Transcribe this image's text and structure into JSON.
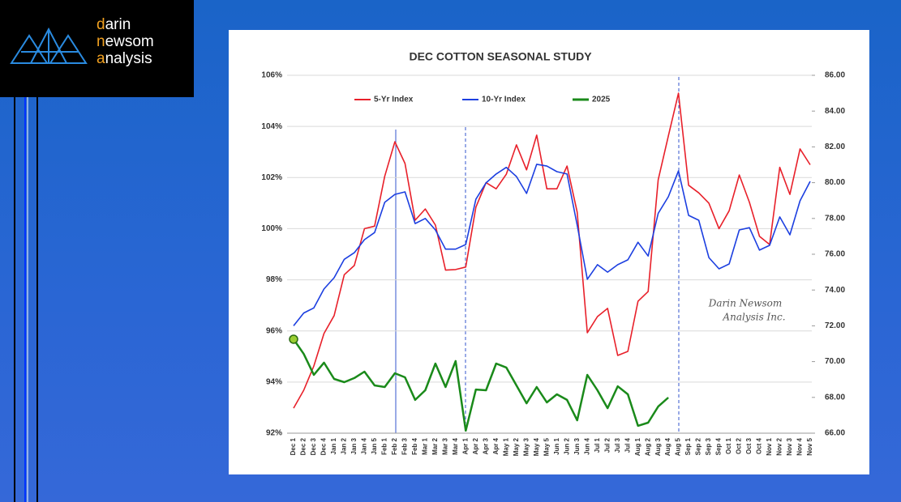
{
  "brand": {
    "lines": [
      "darin",
      "newsom",
      "analysis"
    ]
  },
  "chart_data": {
    "type": "line",
    "title": "DEC COTTON SEASONAL STUDY",
    "watermark": [
      "Darin Newsom",
      "Analysis Inc."
    ],
    "categories": [
      "Dec 1",
      "Dec 2",
      "Dec 3",
      "Dec 4",
      "Jan 1",
      "Jan 2",
      "Jan 3",
      "Jan 4",
      "Jan 5",
      "Feb 1",
      "Feb 2",
      "Feb 3",
      "Feb 4",
      "Mar 1",
      "Mar 2",
      "Mar 3",
      "Mar 4",
      "Apr 1",
      "Apr 2",
      "Apr 3",
      "Apr 4",
      "May 1",
      "May 2",
      "May 3",
      "May 4",
      "May 5",
      "Jun 1",
      "Jun 2",
      "Jun 3",
      "Jun 4",
      "Jul 1",
      "Jul 2",
      "Jul 3",
      "Jul 4",
      "Aug 1",
      "Aug 2",
      "Aug 3",
      "Aug 4",
      "Aug 5",
      "Sep 1",
      "Sep 2",
      "Sep 3",
      "Sep 4",
      "Oct 1",
      "Oct 2",
      "Oct 3",
      "Oct 4",
      "Nov 1",
      "Nov 2",
      "Nov 3",
      "Nov 4",
      "Nov 5"
    ],
    "series": [
      {
        "name": "5-Yr Index",
        "color": "#e8202a",
        "values": [
          92.98,
          93.68,
          94.63,
          95.9,
          96.6,
          98.2,
          98.56,
          100.0,
          100.1,
          102.05,
          103.4,
          102.55,
          100.33,
          100.77,
          100.14,
          98.38,
          98.4,
          98.5,
          100.84,
          101.8,
          101.56,
          102.13,
          103.28,
          102.3,
          103.66,
          101.56,
          101.56,
          102.45,
          100.65,
          95.93,
          96.56,
          96.88,
          95.04,
          95.2,
          97.16,
          97.54,
          101.91,
          103.62,
          105.3,
          101.7,
          101.4,
          101.0,
          100.0,
          100.7,
          102.1,
          101.03,
          99.7,
          99.38,
          102.4,
          101.34,
          103.12,
          102.5
        ]
      },
      {
        "name": "10-Yr Index",
        "color": "#1c3fe0",
        "values": [
          96.2,
          96.7,
          96.9,
          97.64,
          98.08,
          98.8,
          99.06,
          99.57,
          99.85,
          101.03,
          101.34,
          101.44,
          100.2,
          100.4,
          99.95,
          99.2,
          99.2,
          99.38,
          101.15,
          101.79,
          102.14,
          102.4,
          102.04,
          101.38,
          102.52,
          102.45,
          102.23,
          102.14,
          100.14,
          98.02,
          98.59,
          98.3,
          98.59,
          98.78,
          99.47,
          98.93,
          100.6,
          101.25,
          102.26,
          100.52,
          100.33,
          98.87,
          98.43,
          98.62,
          99.95,
          100.04,
          99.16,
          99.35,
          100.46,
          99.76,
          101.09,
          101.85
        ]
      },
      {
        "name": "2025",
        "color": "#1a8a1a",
        "axis": "y2",
        "values": [
          71.25,
          70.43,
          69.26,
          69.94,
          69.03,
          68.85,
          69.08,
          69.44,
          68.67,
          68.58,
          69.35,
          69.12,
          67.86,
          68.4,
          69.89,
          68.58,
          70.03,
          66.14,
          68.44,
          68.4,
          69.89,
          69.67,
          68.67,
          67.67,
          68.58,
          67.72,
          68.17,
          67.86,
          66.72,
          69.26,
          68.4,
          67.4,
          68.62,
          68.17,
          66.41,
          66.59,
          67.49,
          67.99,
          null,
          null,
          null,
          null,
          null,
          null,
          null,
          null,
          null,
          null,
          null,
          null,
          null,
          null
        ]
      }
    ],
    "ylim": [
      92,
      106
    ],
    "yticks": [
      {
        "value": 92,
        "label": "92%"
      },
      {
        "value": 94,
        "label": "94%"
      },
      {
        "value": 96,
        "label": "96%"
      },
      {
        "value": 98,
        "label": "98%"
      },
      {
        "value": 100,
        "label": "100%"
      },
      {
        "value": 102,
        "label": "102%"
      },
      {
        "value": 104,
        "label": "104%"
      },
      {
        "value": 106,
        "label": "106%"
      }
    ],
    "y2lim": [
      66,
      86
    ],
    "y2ticks": [
      {
        "value": 66,
        "label": "66.00"
      },
      {
        "value": 68,
        "label": "68.00"
      },
      {
        "value": 70,
        "label": "70.00"
      },
      {
        "value": 72,
        "label": "72.00"
      },
      {
        "value": 74,
        "label": "74.00"
      },
      {
        "value": 76,
        "label": "76.00"
      },
      {
        "value": 78,
        "label": "78.00"
      },
      {
        "value": 80,
        "label": "80.00"
      },
      {
        "value": 82,
        "label": "82.00"
      },
      {
        "value": 84,
        "label": "84.00"
      },
      {
        "value": 86,
        "label": "86.00"
      }
    ],
    "grid": true,
    "legend": "top"
  }
}
